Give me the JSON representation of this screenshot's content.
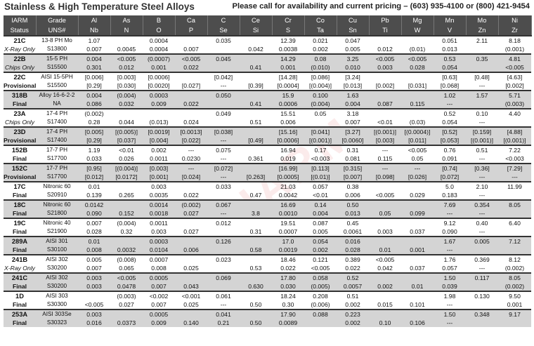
{
  "title": "Stainless & High Temperature Steel Alloys",
  "contact": "Please call for availability and current pricing – (603) 935-4100 or (800) 421-9454",
  "watermark": "IARM",
  "headers": [
    [
      "IARM",
      "Status"
    ],
    [
      "Grade",
      "UNS#"
    ],
    [
      "Al",
      "Nb"
    ],
    [
      "As",
      "N"
    ],
    [
      "B",
      "O"
    ],
    [
      "Ca",
      "P"
    ],
    [
      "C",
      "Se"
    ],
    [
      "Ce",
      "Si"
    ],
    [
      "Cr",
      "S"
    ],
    [
      "Co",
      "Ta"
    ],
    [
      "Cu",
      "Sn"
    ],
    [
      "Pb",
      "Ti"
    ],
    [
      "Mg",
      "W"
    ],
    [
      "Mn",
      "V"
    ],
    [
      "Mo",
      "Zn"
    ],
    [
      "Ni",
      "Zr"
    ]
  ],
  "rows": [
    {
      "id": "21C",
      "status": "X-Ray Only",
      "grade": "13-8 PH Mo",
      "uns": "S13800",
      "r1": [
        "1.07",
        "",
        "0.0004",
        "",
        "0.035",
        "",
        "12.39",
        "0.021",
        "0.047",
        "",
        "",
        "0.051",
        "2.11",
        "8.18"
      ],
      "r2": [
        "0.007",
        "0.0045",
        "0.0004",
        "0.007",
        "",
        "0.042",
        "0.0038",
        "0.002",
        "0.005",
        "0.012",
        "(0.01)",
        "0.013",
        "",
        "(0.001)"
      ]
    },
    {
      "id": "22B",
      "status": "Chips Only",
      "grade": "15-5 PH",
      "uns": "S15500",
      "r1": [
        "0.004",
        "<0.005",
        "(0.0007)",
        "<0.005",
        "0.045",
        "",
        "14.29",
        "0.08",
        "3.25",
        "<0.005",
        "<0.005",
        "0.53",
        "0.35",
        "4.81"
      ],
      "r2": [
        "0.301",
        "0.012",
        "0.001",
        "0.022",
        "",
        "0.41",
        "0.001",
        "(0.010)",
        "0.010",
        "0.003",
        "0.028",
        "0.054",
        "",
        "<0.005"
      ]
    },
    {
      "id": "22C",
      "status": "Provisional",
      "grade": "AISI 15-5PH",
      "uns": "S15500",
      "r1": [
        "[0.006]",
        "[0.003]",
        "[0.0006]",
        "",
        "[0.042]",
        "",
        "[14.28]",
        "[0.086]",
        "[3.24]",
        "",
        "",
        "[0.63]",
        "[0.48]",
        "[4.63]"
      ],
      "r2": [
        "[0.29]",
        "[0.030]",
        "[0.0020]",
        "[0.027]",
        "---",
        "[0.39]",
        "[0.0004]",
        "[(0.004)]",
        "[0.013]",
        "[0.002]",
        "[0.031]",
        "[0.068]",
        "---",
        "[0.002]"
      ]
    },
    {
      "id": "318B",
      "status": "Final",
      "grade": "Alloy 16-6-2-2",
      "uns": "NA",
      "r1": [
        "0.004",
        "(0.004)",
        "0.0003",
        "",
        "0.050",
        "",
        "15.9",
        "0.100",
        "1.63",
        "",
        "",
        "1.02",
        "1.57",
        "5.71"
      ],
      "r2": [
        "0.086",
        "0.032",
        "0.009",
        "0.022",
        "",
        "0.41",
        "0.0006",
        "(0.004)",
        "0.004",
        "0.087",
        "0.115",
        "---",
        "",
        "(0.003)"
      ]
    },
    {
      "id": "23A",
      "status": "Chips Only",
      "grade": "17-4 PH",
      "uns": "S17400",
      "r1": [
        "(0.002)",
        "",
        "",
        "",
        "0.049",
        "",
        "15.51",
        "0.05",
        "3.18",
        "",
        "",
        "0.52",
        "0.10",
        "4.40"
      ],
      "r2": [
        "0.28",
        "0.044",
        "(0.013)",
        "0.024",
        "",
        "0.51",
        "0.006",
        "",
        "0.007",
        "<0.01",
        "(0.03)",
        "0.054",
        "---",
        ""
      ]
    },
    {
      "id": "23D",
      "status": "Provisional",
      "grade": "17-4 PH",
      "uns": "S17400",
      "r1": [
        "[0.005]",
        "[(0.005)]",
        "[0.0019]",
        "[0.0013]",
        "[0.038]",
        "",
        "[15.16]",
        "[0.041]",
        "[3.27]",
        "[(0.001)]",
        "[(0.0004)]",
        "[0.52]",
        "[0.159]",
        "[4.88]"
      ],
      "r2": [
        "[0.29]",
        "[0.037]",
        "[0.004]",
        "[0.022]",
        "---",
        "[0.49]",
        "[0.0006]",
        "[(0.001)]",
        "[0.0060]",
        "[0.003]",
        "[0.011]",
        "[0.053]",
        "[(0.001)]",
        "[(0.001)]"
      ]
    },
    {
      "id": "152B",
      "status": "Final",
      "grade": "17-7 PH",
      "uns": "S17700",
      "r1": [
        "1.19",
        "<0.01",
        "0.002",
        "---",
        "0.075",
        "",
        "16.94",
        "0.17",
        "0.31",
        "---",
        "<0.005",
        "0.76",
        "0.51",
        "7.22"
      ],
      "r2": [
        "0.033",
        "0.026",
        "0.0011",
        "0.0230",
        "---",
        "0.361",
        "0.019",
        "<0.003",
        "0.081",
        "0.115",
        "0.05",
        "0.091",
        "---",
        "<0.003"
      ]
    },
    {
      "id": "152C",
      "status": "Provisional",
      "grade": "17-7 PH",
      "uns": "S17700",
      "r1": [
        "[0.95]",
        "[(0.004)]",
        "[0.003]",
        "---",
        "[0.072]",
        "",
        "[16.99]",
        "[0.113]",
        "[0.315]",
        "---",
        "---",
        "[0.74]",
        "[0.36]",
        "[7.29]"
      ],
      "r2": [
        "[0.012]",
        "[0.0172]",
        "[0.001]",
        "[0.024]",
        "---",
        "[0.263]",
        "[0.0005]",
        "[(0.01)]",
        "[0.007]",
        "[0.098]",
        "[0.026]",
        "[0.072]",
        "---",
        "---"
      ]
    },
    {
      "id": "17C",
      "status": "Final",
      "grade": "Nitronic 60",
      "uns": "S20910",
      "r1": [
        "0.01",
        "",
        "0.003",
        "",
        "0.033",
        "",
        "21.03",
        "0.057",
        "0.38",
        "",
        "",
        "5.0",
        "2.10",
        "11.99"
      ],
      "r2": [
        "0.139",
        "0.265",
        "0.0035",
        "0.022",
        "",
        "0.47",
        "0.0042",
        "<0.01",
        "0.006",
        "<0.005",
        "0.029",
        "0.183",
        "---",
        ""
      ]
    },
    {
      "id": "18C",
      "status": "Final",
      "grade": "Nitronic 60",
      "uns": "S21800",
      "r1": [
        "0.0142",
        "",
        "0.0014",
        "(0.002)",
        "0.067",
        "",
        "16.69",
        "0.14",
        "0.50",
        "",
        "",
        "7.69",
        "0.354",
        "8.05"
      ],
      "r2": [
        "0.090",
        "0.152",
        "0.0018",
        "0.027",
        "---",
        "3.8",
        "0.0010",
        "0.004",
        "0.013",
        "0.05",
        "0.099",
        "---",
        "---",
        ""
      ]
    },
    {
      "id": "19C",
      "status": "Final",
      "grade": "Nitronic 40",
      "uns": "S21900",
      "r1": [
        "0.007",
        "(0.004)",
        "0.0011",
        "",
        "0.012",
        "",
        "19.51",
        "0.087",
        "0.45",
        "",
        "",
        "9.12",
        "0.40",
        "6.40"
      ],
      "r2": [
        "0.028",
        "0.32",
        "0.003",
        "0.027",
        "",
        "0.31",
        "0.0007",
        "0.005",
        "0.0061",
        "0.003",
        "0.037",
        "0.090",
        "---",
        ""
      ]
    },
    {
      "id": "289A",
      "status": "Final",
      "grade": "AISI 301",
      "uns": "S30100",
      "r1": [
        "0.01",
        "",
        "0.0003",
        "",
        "0.126",
        "",
        "17.0",
        "0.054",
        "0.016",
        "",
        "",
        "1.67",
        "0.005",
        "7.12"
      ],
      "r2": [
        "0.008",
        "0.0032",
        "0.0104",
        "0.006",
        "",
        "0.58",
        "0.0019",
        "0.002",
        "0.028",
        "0.01",
        "0.001",
        "---",
        "",
        ""
      ]
    },
    {
      "id": "241B",
      "status": "X-Ray Only",
      "grade": "AISI 302",
      "uns": "S30200",
      "r1": [
        "0.005",
        "(0.008)",
        "0.0007",
        "",
        "0.023",
        "",
        "18.46",
        "0.121",
        "0.389",
        "<0.005",
        "",
        "1.76",
        "0.369",
        "8.12"
      ],
      "r2": [
        "0.007",
        "0.065",
        "0.008",
        "0.025",
        "",
        "0.53",
        "0.022",
        "<0.005",
        "0.022",
        "0.042",
        "0.037",
        "0.057",
        "---",
        "(0.002)"
      ]
    },
    {
      "id": "241C",
      "status": "Final",
      "grade": "AISI 302",
      "uns": "S30200",
      "r1": [
        "0.003",
        "<0.005",
        "0.0005",
        "",
        "0.069",
        "",
        "17.80",
        "0.058",
        "0.52",
        "",
        "",
        "1.50",
        "0.117",
        "8.05"
      ],
      "r2": [
        "0.003",
        "0.0478",
        "0.007",
        "0.043",
        "",
        "0.630",
        "0.030",
        "(0.005)",
        "0.0057",
        "0.002",
        "0.01",
        "0.039",
        "",
        "(0.002)"
      ]
    },
    {
      "id": "1D",
      "status": "Final",
      "grade": "AISI 303",
      "uns": "S30300",
      "r1": [
        "",
        "(0.003)",
        "<0.002",
        "<0.001",
        "0.061",
        "",
        "18.24",
        "0.208",
        "0.51",
        "",
        "",
        "1.98",
        "0.130",
        "9.50"
      ],
      "r2": [
        "<0.005",
        "0.027",
        "0.007",
        "0.025",
        "---",
        "0.50",
        "0.30",
        "(0.006)",
        "0.002",
        "0.015",
        "0.101",
        "---",
        "",
        "0.001"
      ]
    },
    {
      "id": "253A",
      "status": "Final",
      "grade": "AISI 303Se",
      "uns": "S30323",
      "r1": [
        "0.003",
        "",
        "0.0005",
        "",
        "0.041",
        "",
        "17.90",
        "0.088",
        "0.223",
        "",
        "",
        "1.50",
        "0.348",
        "9.17"
      ],
      "r2": [
        "0.016",
        "0.0373",
        "0.009",
        "0.140",
        "0.21",
        "0.50",
        "0.0089",
        "",
        "0.002",
        "0.10",
        "0.106",
        "---",
        "",
        ""
      ]
    }
  ]
}
